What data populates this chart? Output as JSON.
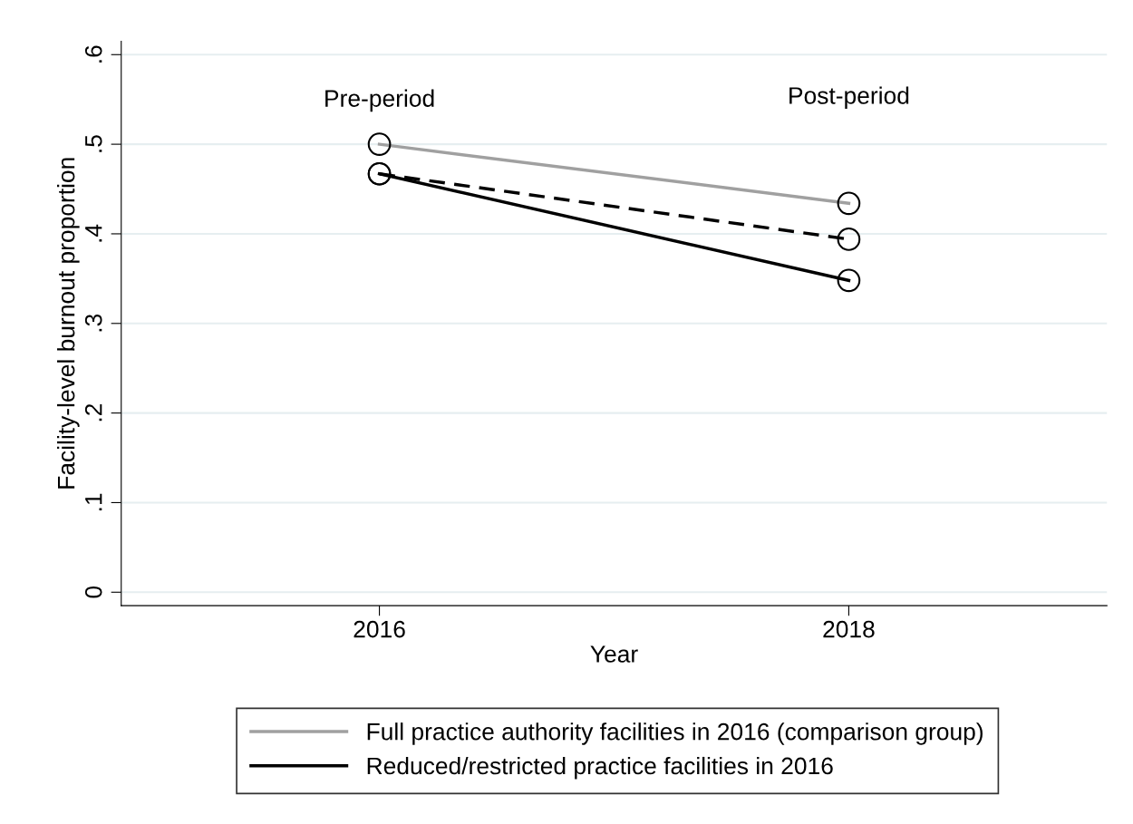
{
  "chart_data": {
    "type": "line",
    "xlabel": "Year",
    "ylabel": "Facility-level burnout proportion",
    "x": [
      2016,
      2018
    ],
    "series": [
      {
        "name": "Full practice authority facilities in 2016 (comparison group)",
        "color": "#a0a0a0",
        "values": [
          0.5,
          0.434
        ]
      },
      {
        "color": "#000000",
        "values": [
          0.467,
          0.394
        ],
        "line_style": "dashed"
      },
      {
        "name": "Reduced/restricted practice facilities in 2016",
        "color": "#000000",
        "values": [
          0.467,
          0.348
        ]
      }
    ],
    "xlim": [
      2014.9,
      2019.1
    ],
    "xticks": [
      2016,
      2018
    ],
    "ylim": [
      -0.015,
      0.615
    ],
    "yticks": [
      {
        "value": 0,
        "label": "0"
      },
      {
        "value": 0.1,
        "label": ".1"
      },
      {
        "value": 0.2,
        "label": ".2"
      },
      {
        "value": 0.3,
        "label": ".3"
      },
      {
        "value": 0.4,
        "label": ".4"
      },
      {
        "value": 0.5,
        "label": ".5"
      },
      {
        "value": 0.6,
        "label": ".6"
      }
    ],
    "annotations": [
      "Pre-period",
      "Post-period"
    ],
    "grid": "y",
    "legend": "bottom",
    "marker": "circle",
    "line_style": "solid"
  }
}
